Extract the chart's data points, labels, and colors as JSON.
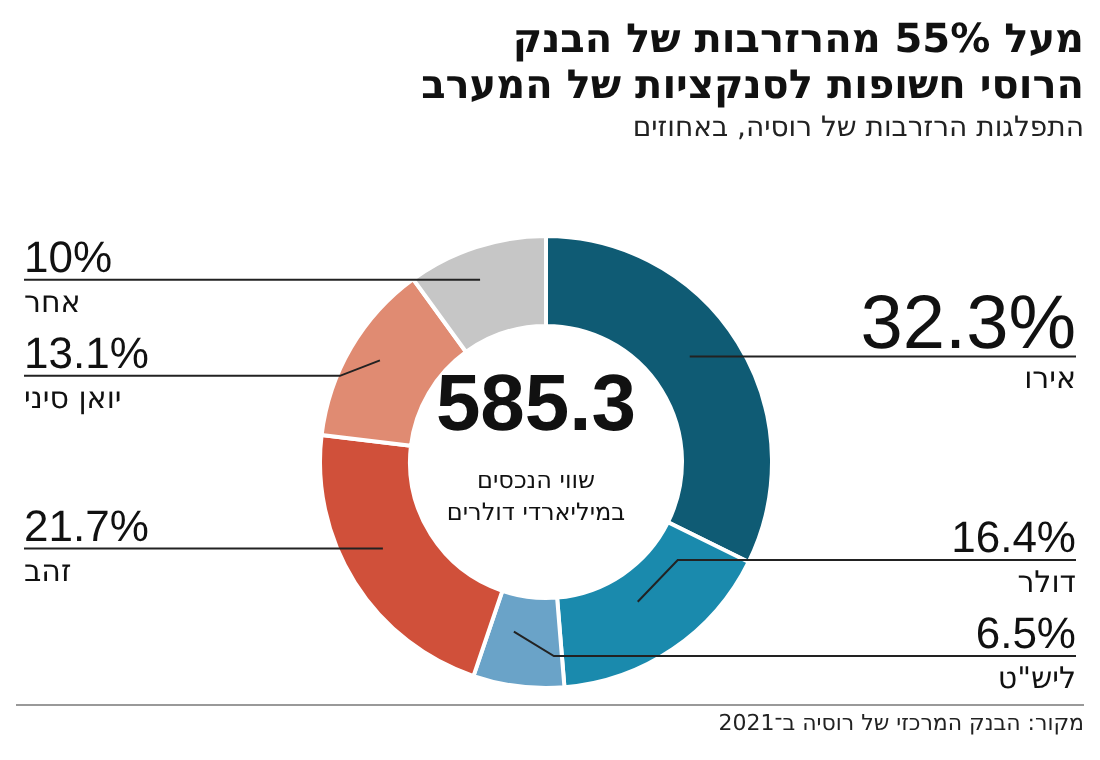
{
  "chart_data": {
    "type": "donut",
    "title": "מעל 55% מהרזרבות של הבנק הרוסי חשופות לסנקציות של המערב",
    "subtitle": "התפלגות הרזרבות של רוסיה, באחוזים",
    "categories": [
      "אירו",
      "דולר",
      "ליש\"ט",
      "זהב",
      "יואן סיני",
      "אחר"
    ],
    "values": [
      32.3,
      16.4,
      6.5,
      21.7,
      13.1,
      10
    ],
    "colors": [
      "#0f5b74",
      "#1a8aad",
      "#6aa3c8",
      "#d0503a",
      "#e08b72",
      "#c6c6c6"
    ],
    "value_labels": [
      "32.3%",
      "16.4%",
      "6.5%",
      "21.7%",
      "13.1%",
      "10%"
    ],
    "legend": false,
    "annotations": [
      "585.3",
      "שווי הנכסים במיליארדי דולרים",
      "מקור: הבנק המרכזי של רוסיה ב־2021"
    ]
  }
}
